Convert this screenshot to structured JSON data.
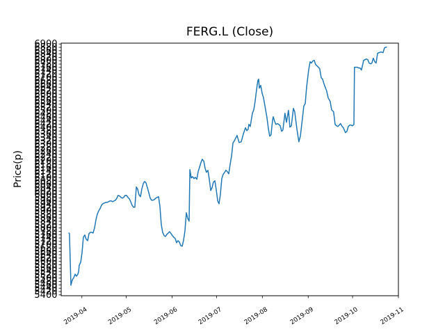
{
  "chart_data": {
    "type": "line",
    "title": "FERG.L (Close)",
    "ylabel": "Price(p)",
    "xlabel": "",
    "legend": "none",
    "grid": false,
    "background_color": "#ffffff",
    "axis_color": "#000000",
    "series": [
      {
        "name": "FERG.L Close",
        "color": "#1f77b4",
        "x_unit": "days since 2019-03-18",
        "points": [
          [
            5.2,
            5770
          ],
          [
            5.6,
            5766
          ],
          [
            6.6,
            5458
          ],
          [
            7.5,
            5490
          ],
          [
            8.5,
            5503
          ],
          [
            9.4,
            5524
          ],
          [
            10.3,
            5512
          ],
          [
            11.3,
            5524
          ],
          [
            11.8,
            5541
          ],
          [
            12.2,
            5578
          ],
          [
            13.2,
            5595
          ],
          [
            14.1,
            5653
          ],
          [
            15,
            5745
          ],
          [
            16,
            5758
          ],
          [
            16.9,
            5733
          ],
          [
            17.9,
            5724
          ],
          [
            18.8,
            5766
          ],
          [
            19.7,
            5774
          ],
          [
            20.7,
            5774
          ],
          [
            21.6,
            5770
          ],
          [
            22.6,
            5803
          ],
          [
            23.5,
            5849
          ],
          [
            24.4,
            5882
          ],
          [
            25.4,
            5903
          ],
          [
            26.3,
            5916
          ],
          [
            27.3,
            5937
          ],
          [
            28.2,
            5945
          ],
          [
            29.1,
            5949
          ],
          [
            30.1,
            5953
          ],
          [
            31,
            5953
          ],
          [
            32,
            5957
          ],
          [
            32.9,
            5962
          ],
          [
            33.8,
            5962
          ],
          [
            34.8,
            5957
          ],
          [
            35.7,
            5962
          ],
          [
            36.7,
            5966
          ],
          [
            37.6,
            5978
          ],
          [
            38.5,
            5995
          ],
          [
            39.5,
            5991
          ],
          [
            40.4,
            5983
          ],
          [
            41.4,
            5978
          ],
          [
            42.3,
            5983
          ],
          [
            43.2,
            5995
          ],
          [
            44.2,
            5995
          ],
          [
            45.1,
            5983
          ],
          [
            46.1,
            5974
          ],
          [
            47,
            5957
          ],
          [
            47.9,
            5937
          ],
          [
            48.9,
            5924
          ],
          [
            49.8,
            5924
          ],
          [
            50.8,
            6045
          ],
          [
            51.7,
            6032
          ],
          [
            52.6,
            5999
          ],
          [
            53.6,
            5987
          ],
          [
            54.5,
            6032
          ],
          [
            55.5,
            6066
          ],
          [
            56.4,
            6078
          ],
          [
            57.3,
            6070
          ],
          [
            58.3,
            6041
          ],
          [
            59.2,
            6012
          ],
          [
            60.2,
            5978
          ],
          [
            61.1,
            5966
          ],
          [
            62,
            5966
          ],
          [
            63,
            5970
          ],
          [
            63.9,
            5978
          ],
          [
            64.9,
            5983
          ],
          [
            65.8,
            5987
          ],
          [
            66.7,
            5933
          ],
          [
            67.7,
            5820
          ],
          [
            68.6,
            5774
          ],
          [
            69.6,
            5754
          ],
          [
            70.5,
            5749
          ],
          [
            71.4,
            5762
          ],
          [
            72.4,
            5770
          ],
          [
            73.3,
            5778
          ],
          [
            74.3,
            5766
          ],
          [
            75.2,
            5754
          ],
          [
            76.1,
            5745
          ],
          [
            77.1,
            5737
          ],
          [
            78,
            5712
          ],
          [
            79,
            5724
          ],
          [
            79.9,
            5716
          ],
          [
            80.8,
            5695
          ],
          [
            81.8,
            5691
          ],
          [
            82.7,
            5724
          ],
          [
            83.7,
            5783
          ],
          [
            84.6,
            5891
          ],
          [
            85.5,
            5858
          ],
          [
            86.5,
            5841
          ],
          [
            87,
            6149
          ],
          [
            87.9,
            6099
          ],
          [
            88.8,
            6107
          ],
          [
            89.8,
            6095
          ],
          [
            90.7,
            6103
          ],
          [
            91.7,
            6091
          ],
          [
            92.6,
            6137
          ],
          [
            93.5,
            6162
          ],
          [
            94.5,
            6191
          ],
          [
            95.4,
            6211
          ],
          [
            96.4,
            6199
          ],
          [
            97.3,
            6157
          ],
          [
            98.2,
            6133
          ],
          [
            99.2,
            6145
          ],
          [
            100.1,
            6095
          ],
          [
            101.1,
            6024
          ],
          [
            102,
            6041
          ],
          [
            102.9,
            6074
          ],
          [
            103.9,
            6082
          ],
          [
            104.8,
            6032
          ],
          [
            105.8,
            5962
          ],
          [
            106.7,
            5945
          ],
          [
            107.6,
            5999
          ],
          [
            108.6,
            6095
          ],
          [
            109.5,
            6120
          ],
          [
            110.5,
            6133
          ],
          [
            111.4,
            6145
          ],
          [
            112.3,
            6137
          ],
          [
            113.3,
            6124
          ],
          [
            114.2,
            6178
          ],
          [
            115.2,
            6232
          ],
          [
            116.1,
            6307
          ],
          [
            117.5,
            6328
          ],
          [
            118.9,
            6353
          ],
          [
            120.3,
            6311
          ],
          [
            121.7,
            6315
          ],
          [
            123.1,
            6361
          ],
          [
            124.6,
            6399
          ],
          [
            125.5,
            6382
          ],
          [
            126.4,
            6390
          ],
          [
            126.9,
            6419
          ],
          [
            127.8,
            6407
          ],
          [
            129.3,
            6486
          ],
          [
            130.2,
            6507
          ],
          [
            131.1,
            6557
          ],
          [
            132.1,
            6627
          ],
          [
            133,
            6682
          ],
          [
            133.5,
            6690
          ],
          [
            134,
            6636
          ],
          [
            134.9,
            6652
          ],
          [
            135.8,
            6607
          ],
          [
            136.8,
            6578
          ],
          [
            138.2,
            6507
          ],
          [
            139.1,
            6461
          ],
          [
            140.1,
            6394
          ],
          [
            141,
            6349
          ],
          [
            141.9,
            6357
          ],
          [
            142.9,
            6444
          ],
          [
            143.4,
            6465
          ],
          [
            144.3,
            6436
          ],
          [
            145.2,
            6419
          ],
          [
            146.2,
            6424
          ],
          [
            147.1,
            6419
          ],
          [
            148.1,
            6411
          ],
          [
            149,
            6378
          ],
          [
            149.9,
            6386
          ],
          [
            151.3,
            6486
          ],
          [
            152.3,
            6432
          ],
          [
            153.7,
            6503
          ],
          [
            154.6,
            6403
          ],
          [
            155.6,
            6411
          ],
          [
            157,
            6515
          ],
          [
            157.9,
            6494
          ],
          [
            159.3,
            6394
          ],
          [
            160.7,
            6315
          ],
          [
            161.7,
            6349
          ],
          [
            163.1,
            6453
          ],
          [
            164,
            6528
          ],
          [
            165,
            6544
          ],
          [
            165.9,
            6640
          ],
          [
            167.3,
            6744
          ],
          [
            168.3,
            6794
          ],
          [
            169.2,
            6786
          ],
          [
            170.1,
            6798
          ],
          [
            171.1,
            6802
          ],
          [
            172,
            6777
          ],
          [
            173,
            6769
          ],
          [
            173.9,
            6761
          ],
          [
            174.8,
            6752
          ],
          [
            175.8,
            6698
          ],
          [
            176.7,
            6690
          ],
          [
            177.7,
            6661
          ],
          [
            178.6,
            6640
          ],
          [
            179.5,
            6619
          ],
          [
            180.5,
            6578
          ],
          [
            181.9,
            6557
          ],
          [
            182.8,
            6507
          ],
          [
            184.2,
            6494
          ],
          [
            185.2,
            6419
          ],
          [
            186.1,
            6411
          ],
          [
            187.1,
            6407
          ],
          [
            188,
            6415
          ],
          [
            188.9,
            6424
          ],
          [
            189.9,
            6407
          ],
          [
            190.8,
            6399
          ],
          [
            192.2,
            6370
          ],
          [
            193.2,
            6378
          ],
          [
            194.1,
            6407
          ],
          [
            195.1,
            6415
          ],
          [
            196,
            6415
          ],
          [
            196.9,
            6411
          ],
          [
            197.9,
            6419
          ],
          [
            198.3,
            6761
          ],
          [
            199.3,
            6761
          ],
          [
            200.2,
            6761
          ],
          [
            201.2,
            6756
          ],
          [
            202.1,
            6756
          ],
          [
            203,
            6744
          ],
          [
            204.5,
            6802
          ],
          [
            205.4,
            6806
          ],
          [
            206.3,
            6810
          ],
          [
            207.3,
            6806
          ],
          [
            208.2,
            6786
          ],
          [
            209.2,
            6781
          ],
          [
            210.1,
            6786
          ],
          [
            211,
            6815
          ],
          [
            212,
            6794
          ],
          [
            212.9,
            6786
          ],
          [
            213.9,
            6844
          ],
          [
            214.8,
            6848
          ],
          [
            216.2,
            6852
          ],
          [
            217.6,
            6848
          ],
          [
            218.6,
            6877
          ],
          [
            219.5,
            6881
          ],
          [
            220,
            6881
          ]
        ]
      }
    ],
    "x_axis": {
      "tick_labels": [
        "2019-04",
        "2019-05",
        "2019-06",
        "2019-07",
        "2019-08",
        "2019-09",
        "2019-10",
        "2019-11"
      ],
      "tick_days": [
        14,
        44,
        75,
        105,
        136,
        167,
        197,
        228
      ],
      "range_days": [
        0,
        228
      ],
      "label_rotation_deg": -33
    },
    "y_axis": {
      "range": [
        5395,
        6905
      ],
      "tick_step": 20,
      "tick_values": [
        5400,
        5420,
        5440,
        5460,
        5480,
        5500,
        5520,
        5540,
        5560,
        5580,
        5600,
        5620,
        5640,
        5660,
        5680,
        5700,
        5720,
        5740,
        5760,
        5780,
        5800,
        5820,
        5840,
        5860,
        5880,
        5900,
        5920,
        5940,
        5960,
        5980,
        6000,
        6020,
        6040,
        6060,
        6080,
        6100,
        6120,
        6140,
        6160,
        6180,
        6200,
        6220,
        6240,
        6260,
        6280,
        6300,
        6320,
        6340,
        6360,
        6380,
        6400,
        6420,
        6440,
        6460,
        6480,
        6500,
        6520,
        6540,
        6560,
        6580,
        6600,
        6620,
        6640,
        6660,
        6680,
        6700,
        6720,
        6740,
        6760,
        6780,
        6800,
        6820,
        6840,
        6860,
        6880,
        6900
      ]
    }
  }
}
